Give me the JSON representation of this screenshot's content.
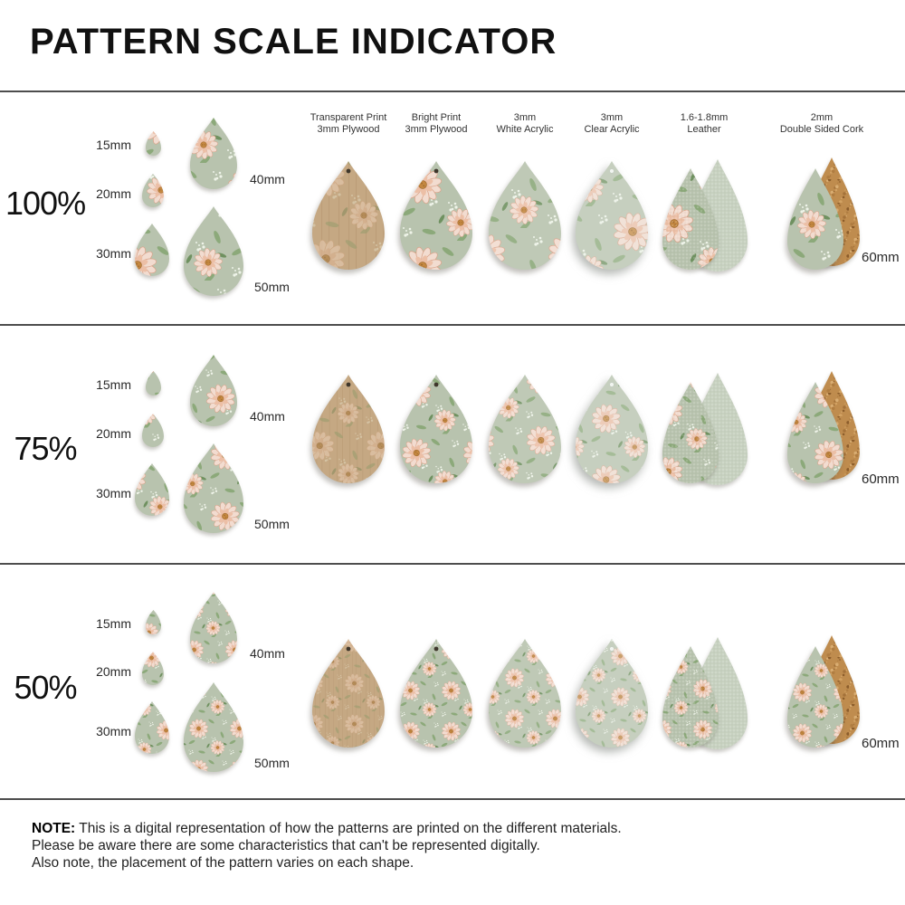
{
  "title": "PATTERN SCALE INDICATOR",
  "rows": [
    {
      "scale_label": "100%",
      "pattern_scale": 1
    },
    {
      "scale_label": "75%",
      "pattern_scale": 0.75
    },
    {
      "scale_label": "50%",
      "pattern_scale": 0.5
    }
  ],
  "materials": [
    {
      "id": "transparent-plywood",
      "line1": "Transparent Print",
      "line2": "3mm Plywood"
    },
    {
      "id": "bright-plywood",
      "line1": "Bright Print",
      "line2": "3mm Plywood"
    },
    {
      "id": "white-acrylic",
      "line1": "3mm",
      "line2": "White Acrylic"
    },
    {
      "id": "clear-acrylic",
      "line1": "3mm",
      "line2": "Clear Acrylic"
    },
    {
      "id": "leather",
      "line1": "1.6-1.8mm",
      "line2": "Leather"
    },
    {
      "id": "cork",
      "line1": "2mm",
      "line2": "Double Sided Cork"
    }
  ],
  "size_labels": [
    "15mm",
    "20mm",
    "30mm",
    "40mm",
    "50mm"
  ],
  "sizes_mm": [
    15,
    20,
    30,
    40,
    50
  ],
  "main_size_label": "60mm",
  "main_size_mm": 60,
  "note": {
    "label": "NOTE:",
    "line1": "This is a digital representation of how the patterns are printed on the different materials.",
    "line2": "Please be aware there are some characteristics that can't be represented digitally.",
    "line3": "Also note, the placement of the pattern varies on each shape."
  },
  "colors": {
    "background": "#ffffff",
    "divider": "#4d4d4d",
    "text": "#1c1c1c",
    "sage": "#b8c3ae",
    "petal": "#f2dcd0",
    "petal_edge": "#d9a288",
    "petal_inner": "#ecbfa6",
    "flower_center": "#c48740",
    "flower_center_edge": "#9e6a2d",
    "leaf": "#8ca97a",
    "leaf_dark": "#6f9160",
    "babys_breath": "#eef3e8",
    "wood": "#c5a883",
    "wood_grain": "#b2916a",
    "cork": "#bf8c4e",
    "leather": "#c7d1c0",
    "hole_dark": "#3e362b",
    "hole_light": "#f1f4f0"
  }
}
